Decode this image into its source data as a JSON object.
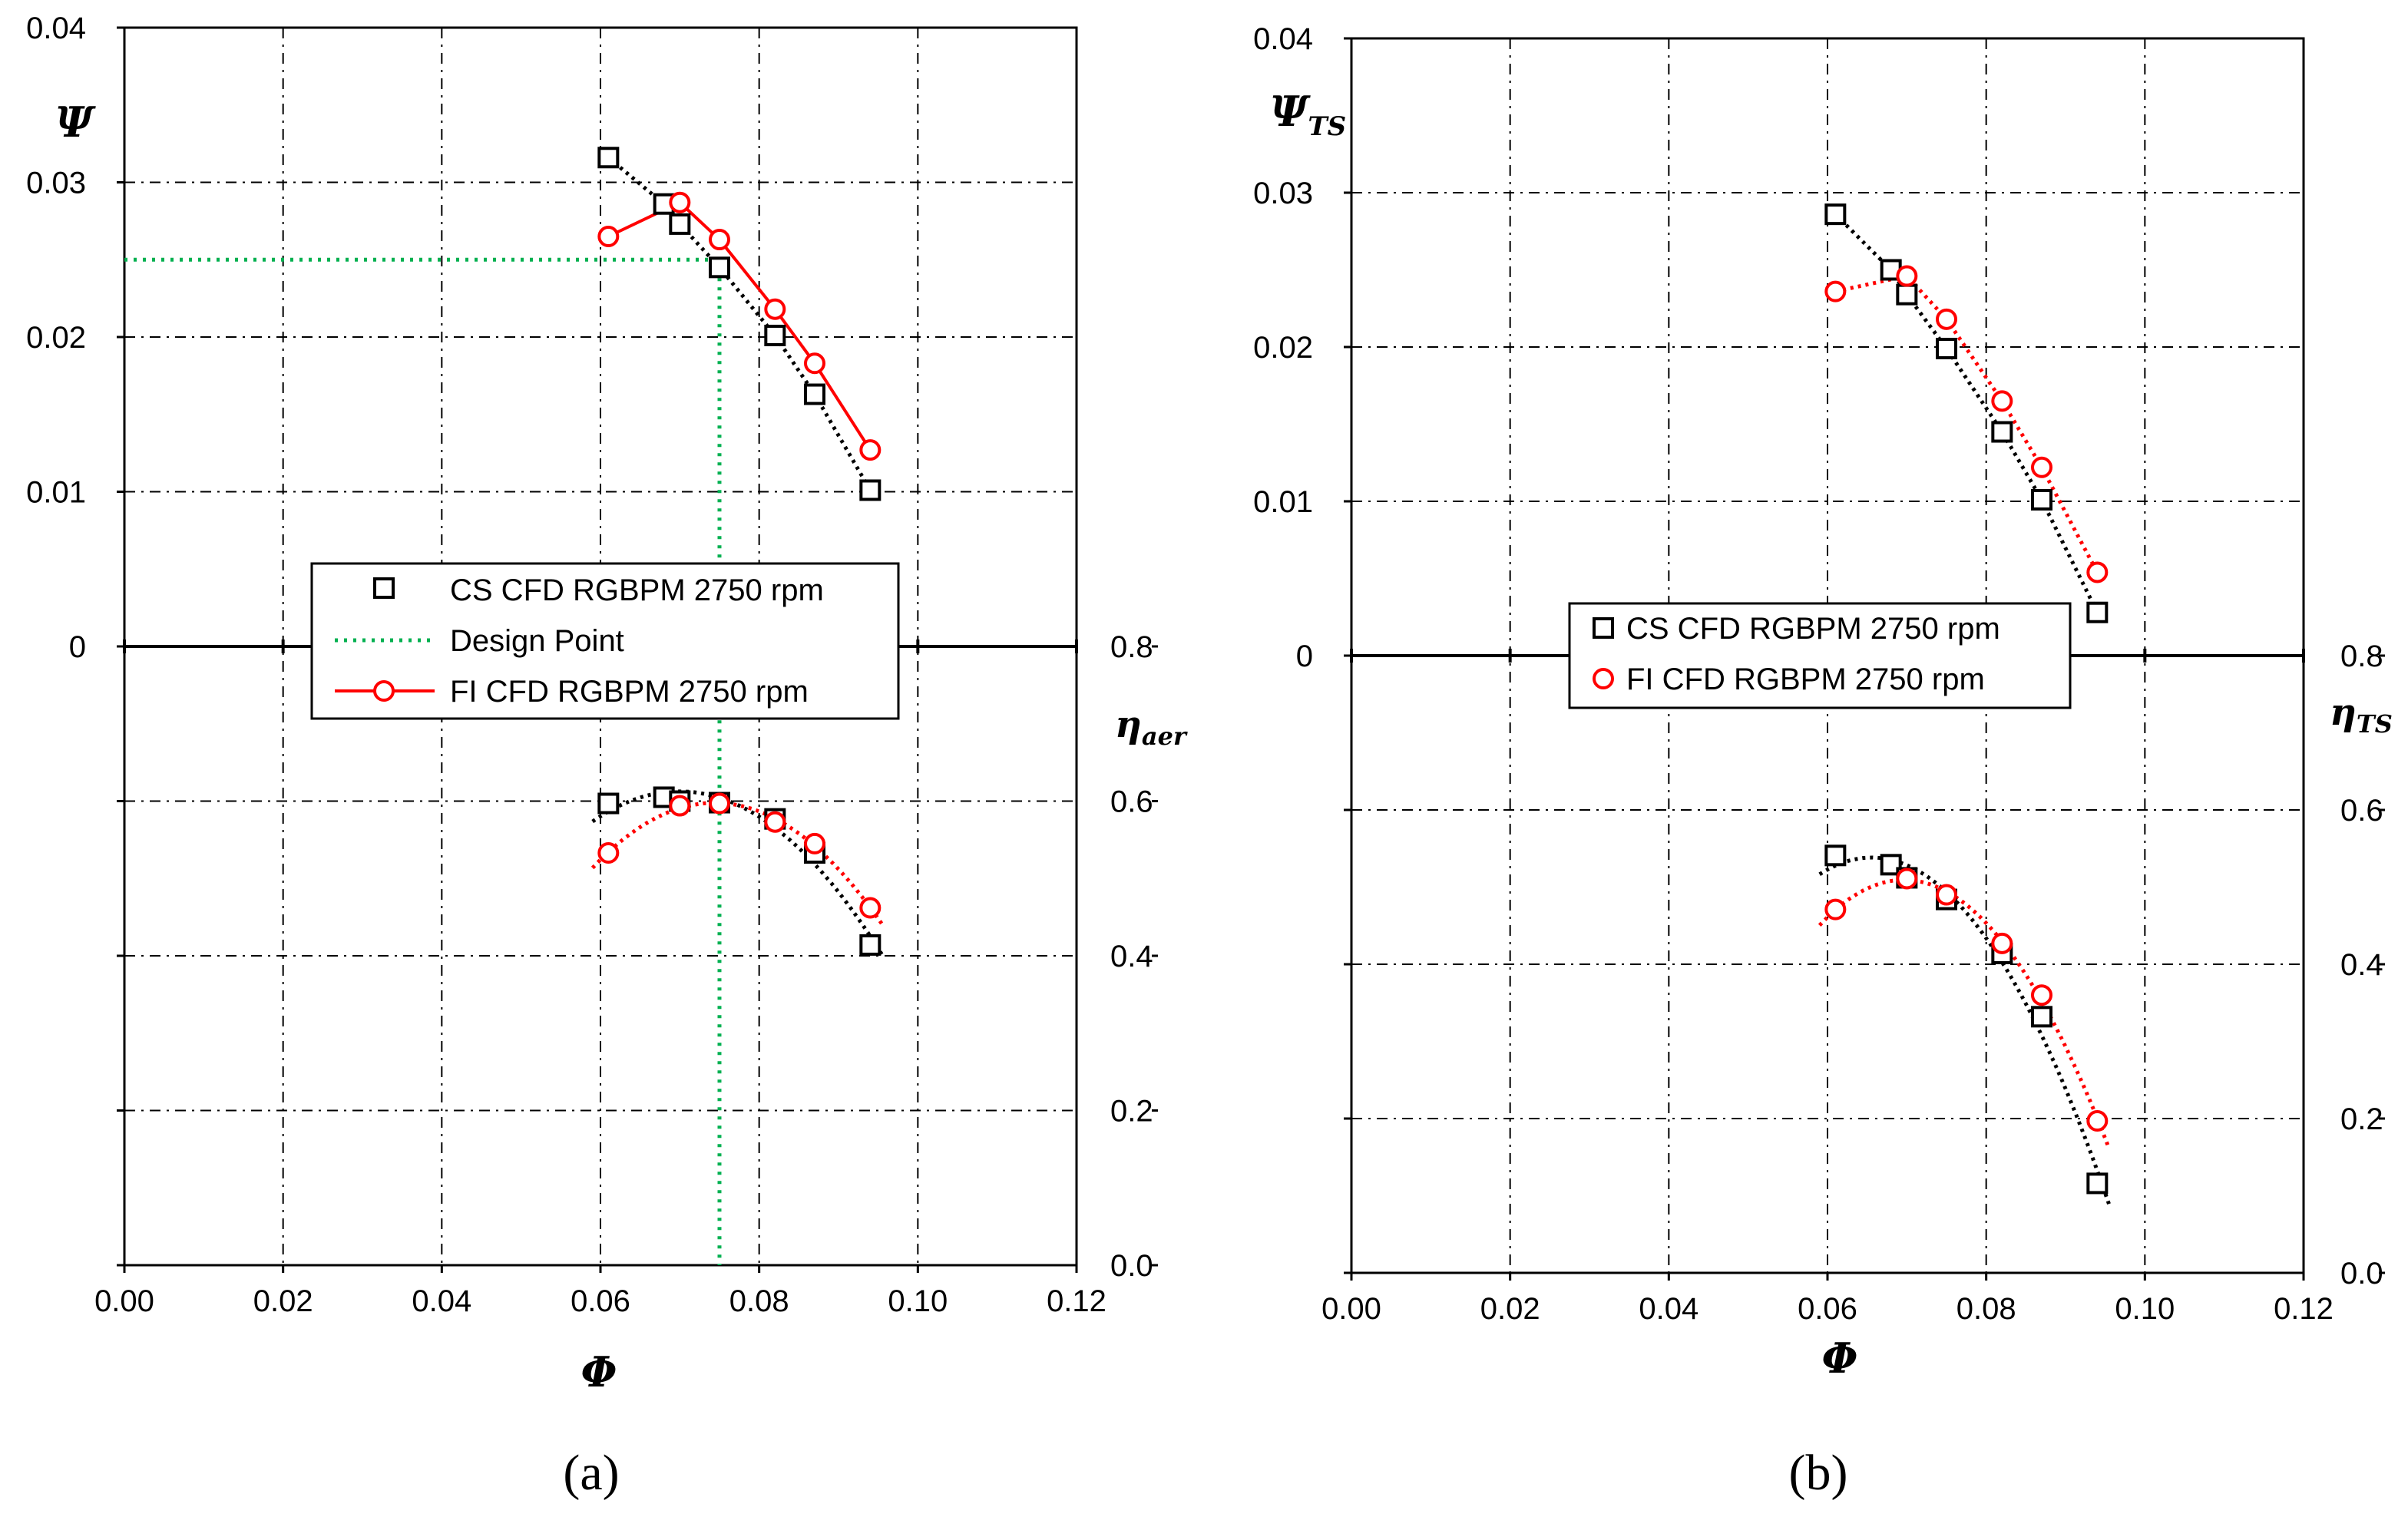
{
  "colors": {
    "cs": "#000000",
    "fi": "#ff0000",
    "design": "#00b050",
    "grid": "#000000"
  },
  "chart_data": [
    {
      "id": "a",
      "type": "line",
      "panel_label": "(a)",
      "x_symbol": "Φ",
      "y_symbol": "Ψ",
      "y_subscript": "",
      "y2_symbol": "η",
      "y2_subscript": "aer",
      "xlim": [
        0,
        0.12
      ],
      "ylim": [
        -0.04,
        0.04
      ],
      "y2lim": [
        0,
        0.8
      ],
      "x_ticks": [
        "0.00",
        "0.02",
        "0.04",
        "0.06",
        "0.08",
        "0.10",
        "0.12"
      ],
      "y_ticks": [
        "0",
        "0.01",
        "0.02",
        "0.03",
        "0.04"
      ],
      "y2_ticks": [
        "0.0",
        "0.2",
        "0.4",
        "0.6",
        "0.8"
      ],
      "legend": [
        "CS CFD RGBPM 2750 rpm",
        "Design Point",
        "FI CFD RGBPM 2750 rpm"
      ],
      "psi_series": [
        {
          "name": "CS CFD RGBPM 2750 rpm",
          "marker": "square",
          "color": "#000000",
          "line": "dotted",
          "x": [
            0.061,
            0.068,
            0.07,
            0.075,
            0.082,
            0.087,
            0.094
          ],
          "y": [
            0.0316,
            0.0286,
            0.0273,
            0.0245,
            0.0201,
            0.0163,
            0.0101
          ]
        },
        {
          "name": "FI CFD RGBPM 2750 rpm",
          "marker": "circle",
          "color": "#ff0000",
          "line": "solid",
          "x": [
            0.061,
            0.07,
            0.075,
            0.082,
            0.087,
            0.094
          ],
          "y": [
            0.0265,
            0.0287,
            0.0263,
            0.0218,
            0.0183,
            0.0127
          ]
        }
      ],
      "eta_series": [
        {
          "name": "CS CFD RGBPM 2750 rpm",
          "marker": "square",
          "color": "#000000",
          "x": [
            0.061,
            0.068,
            0.07,
            0.075,
            0.082,
            0.087,
            0.094
          ],
          "y": [
            0.597,
            0.605,
            0.6,
            0.598,
            0.577,
            0.533,
            0.414
          ],
          "trend_x": [
            0.059,
            0.0953
          ],
          "trend_coef": [
            -0.9,
            0.072,
            0.0
          ]
        },
        {
          "name": "FI CFD RGBPM 2750 rpm",
          "marker": "circle",
          "color": "#ff0000",
          "x": [
            0.061,
            0.07,
            0.075,
            0.082,
            0.087,
            0.094
          ],
          "y": [
            0.533,
            0.594,
            0.597,
            0.573,
            0.545,
            0.462
          ],
          "trend_x": [
            0.059,
            0.0963
          ],
          "trend_coef": [
            -0.9,
            0.072,
            0.0
          ]
        }
      ],
      "design_point": {
        "phi": 0.075,
        "psi": 0.025
      }
    },
    {
      "id": "b",
      "type": "line",
      "panel_label": "(b)",
      "x_symbol": "Φ",
      "y_symbol": "Ψ",
      "y_subscript": "TS",
      "y2_symbol": "η",
      "y2_subscript": "TS",
      "xlim": [
        0,
        0.12
      ],
      "ylim": [
        -0.04,
        0.04
      ],
      "y2lim": [
        0,
        0.8
      ],
      "x_ticks": [
        "0.00",
        "0.02",
        "0.04",
        "0.06",
        "0.08",
        "0.10",
        "0.12"
      ],
      "y_ticks": [
        "0",
        "0.01",
        "0.02",
        "0.03",
        "0.04"
      ],
      "y2_ticks": [
        "0.0",
        "0.2",
        "0.4",
        "0.6",
        "0.8"
      ],
      "legend": [
        "CS CFD RGBPM 2750 rpm",
        "FI CFD RGBPM 2750 rpm"
      ],
      "psi_series": [
        {
          "name": "CS CFD RGBPM 2750 rpm",
          "marker": "square",
          "color": "#000000",
          "line": "dotted",
          "x": [
            0.061,
            0.068,
            0.07,
            0.075,
            0.082,
            0.087,
            0.094
          ],
          "y": [
            0.0286,
            0.025,
            0.0234,
            0.0199,
            0.0145,
            0.0101,
            0.0028
          ]
        },
        {
          "name": "FI CFD RGBPM 2750 rpm",
          "marker": "circle",
          "color": "#ff0000",
          "line": "dotted",
          "x": [
            0.061,
            0.07,
            0.075,
            0.082,
            0.087,
            0.094
          ],
          "y": [
            0.0236,
            0.0246,
            0.0218,
            0.0165,
            0.0122,
            0.0054
          ]
        }
      ],
      "eta_series": [
        {
          "name": "CS CFD RGBPM 2750 rpm",
          "marker": "square",
          "color": "#000000",
          "x": [
            0.061,
            0.068,
            0.07,
            0.075,
            0.082,
            0.087,
            0.094
          ],
          "y": [
            0.541,
            0.529,
            0.512,
            0.484,
            0.414,
            0.332,
            0.116
          ]
        },
        {
          "name": "FI CFD RGBPM 2750 rpm",
          "marker": "circle",
          "color": "#ff0000",
          "x": [
            0.061,
            0.07,
            0.075,
            0.082,
            0.087,
            0.094
          ],
          "y": [
            0.471,
            0.511,
            0.49,
            0.427,
            0.36,
            0.197
          ]
        }
      ]
    }
  ]
}
